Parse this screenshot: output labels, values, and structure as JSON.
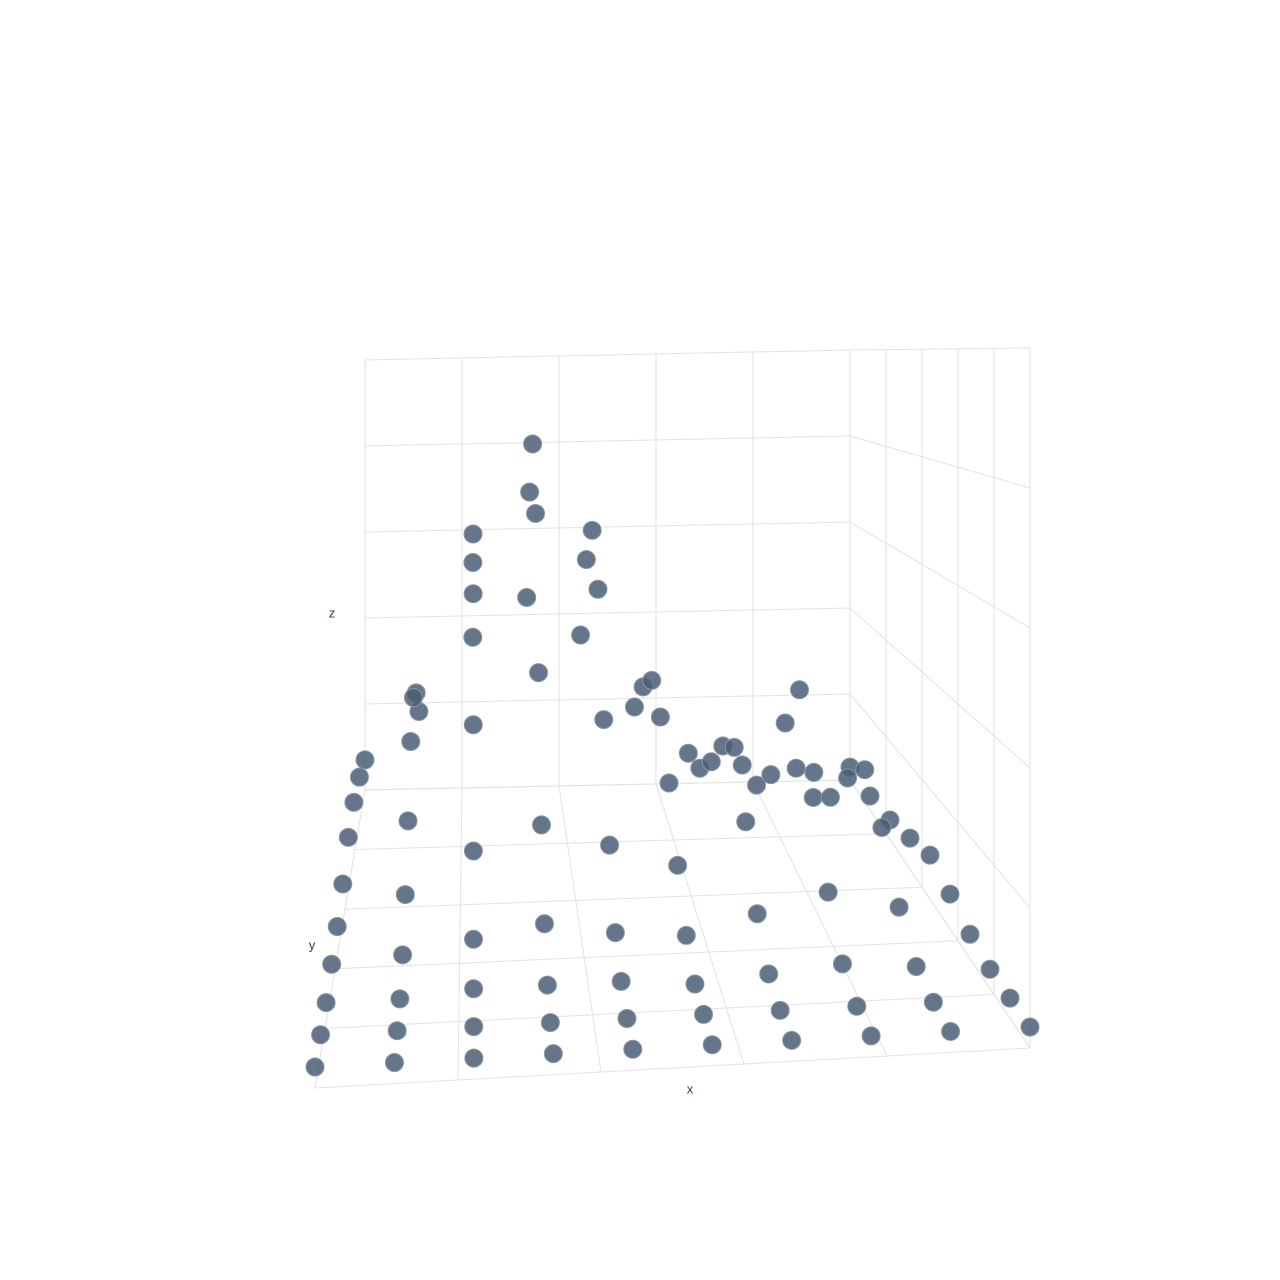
{
  "chart_data": {
    "type": "scatter3d",
    "x_label": "x",
    "y_label": "y",
    "z_label": "z",
    "x": [
      0,
      1,
      2,
      3,
      4,
      5,
      6,
      7,
      8,
      9
    ],
    "y": [
      0,
      1,
      2,
      3,
      4,
      5,
      6,
      7,
      8,
      9
    ],
    "z": [
      [
        0.3,
        0.3,
        0.3,
        0.3,
        0.3,
        0.3,
        0.3,
        0.3,
        0.3,
        0.3
      ],
      [
        0.3,
        0.3,
        0.3,
        0.3,
        0.3,
        0.3,
        0.3,
        0.3,
        0.3,
        0.3
      ],
      [
        0.3,
        0.3,
        0.4,
        0.4,
        0.4,
        0.3,
        0.4,
        0.5,
        0.4,
        0.3
      ],
      [
        0.4,
        0.5,
        0.7,
        0.9,
        0.7,
        0.6,
        0.9,
        1.2,
        0.9,
        0.4
      ],
      [
        0.5,
        1.0,
        1.7,
        2.1,
        1.7,
        1.3,
        2.0,
        2.8,
        1.8,
        0.6
      ],
      [
        0.7,
        1.8,
        3.5,
        4.4,
        3.5,
        2.3,
        2.9,
        3.9,
        2.4,
        0.8
      ],
      [
        1.0,
        2.8,
        5.6,
        7.1,
        5.6,
        3.1,
        2.5,
        2.9,
        1.8,
        0.6
      ],
      [
        1.1,
        3.2,
        6.5,
        8.3,
        6.5,
        3.4,
        1.7,
        1.4,
        0.9,
        0.4
      ],
      [
        1.0,
        2.8,
        5.6,
        7.1,
        5.6,
        2.8,
        1.0,
        0.6,
        0.3,
        0.3
      ],
      [
        0.7,
        1.8,
        3.5,
        4.4,
        3.5,
        1.8,
        0.7,
        0.4,
        0.3,
        0.3
      ]
    ],
    "xlim": [
      0,
      9
    ],
    "ylim": [
      0,
      9
    ],
    "zlim": [
      0,
      10
    ],
    "color": "#4a5e75",
    "grid": true
  }
}
